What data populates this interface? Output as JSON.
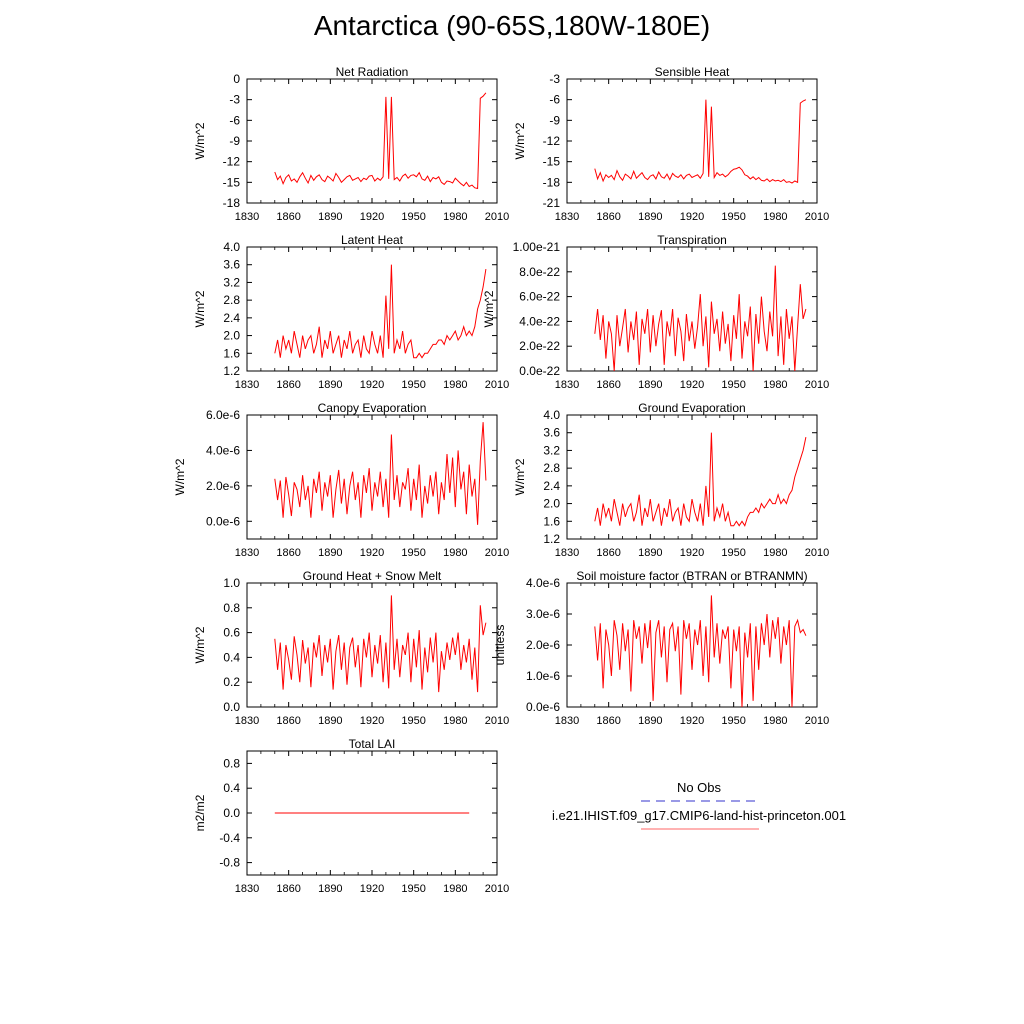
{
  "title": "Antarctica (90-65S,180W-180E)",
  "line_color": "#ff0000",
  "legend": {
    "obs_label": "No Obs",
    "obs_color": "#3333cc",
    "model_label": "i.e21.IHIST.f09_g17.CMIP6-land-hist-princeton.001",
    "model_color": "#ff6666"
  },
  "chart_data": [
    {
      "type": "line",
      "title": "Net Radiation",
      "ylabel": "W/m^2",
      "xlabel": "",
      "xlim": [
        1830,
        2010
      ],
      "ylim": [
        -18,
        0
      ],
      "x_ticks": [
        "1830",
        "1860",
        "1890",
        "1920",
        "1950",
        "1980",
        "2010"
      ],
      "y_ticks": [
        "0",
        "-3",
        "-6",
        "-9",
        "-12",
        "-15",
        "-18"
      ],
      "x_start": 1850,
      "x_step": 2,
      "series": [
        {
          "values": [
            -13.5,
            -14.6,
            -14.1,
            -15.2,
            -14.3,
            -13.9,
            -14.8,
            -14.5,
            -15.0,
            -14.2,
            -13.6,
            -14.4,
            -15.1,
            -14.0,
            -14.7,
            -14.2,
            -13.9,
            -14.6,
            -14.9,
            -14.1,
            -14.4,
            -14.8,
            -13.7,
            -14.3,
            -15.0,
            -14.6,
            -14.2,
            -14.0,
            -14.7,
            -14.5,
            -14.3,
            -14.9,
            -14.4,
            -14.6,
            -14.1,
            -14.0,
            -14.8,
            -14.4,
            -14.7,
            -14.2,
            -2.6,
            -14.5,
            -2.6,
            -14.6,
            -14.3,
            -14.8,
            -14.1,
            -13.8,
            -14.4,
            -14.0,
            -13.9,
            -14.2,
            -13.6,
            -14.5,
            -14.7,
            -14.1,
            -14.9,
            -14.3,
            -14.5,
            -14.2,
            -15.0,
            -15.3,
            -14.8,
            -14.9,
            -15.1,
            -14.4,
            -14.8,
            -15.2,
            -15.5,
            -15.0,
            -15.6,
            -15.4,
            -15.8,
            -15.9,
            -2.8,
            -2.5,
            -2.0
          ]
        }
      ]
    },
    {
      "type": "line",
      "title": "Sensible Heat",
      "ylabel": "W/m^2",
      "xlabel": "",
      "xlim": [
        1830,
        2010
      ],
      "ylim": [
        -21,
        -3
      ],
      "x_ticks": [
        "1830",
        "1860",
        "1890",
        "1920",
        "1950",
        "1980",
        "2010"
      ],
      "y_ticks": [
        "-3",
        "-6",
        "-9",
        "-12",
        "-15",
        "-18",
        "-21"
      ],
      "x_start": 1850,
      "x_step": 2,
      "series": [
        {
          "values": [
            -16.0,
            -17.5,
            -16.6,
            -17.8,
            -16.9,
            -17.3,
            -17.0,
            -17.6,
            -16.3,
            -17.2,
            -17.7,
            -16.8,
            -17.1,
            -17.5,
            -16.4,
            -17.4,
            -17.0,
            -16.6,
            -17.3,
            -17.6,
            -17.1,
            -16.9,
            -17.5,
            -16.5,
            -17.2,
            -17.4,
            -16.8,
            -17.6,
            -16.7,
            -17.1,
            -17.3,
            -16.9,
            -17.5,
            -17.0,
            -16.8,
            -17.3,
            -17.1,
            -16.9,
            -17.4,
            -16.7,
            -6.0,
            -17.2,
            -7.0,
            -17.3,
            -16.6,
            -17.0,
            -16.8,
            -17.2,
            -16.9,
            -16.4,
            -16.1,
            -16.0,
            -15.8,
            -16.2,
            -16.9,
            -17.1,
            -17.5,
            -17.2,
            -17.6,
            -17.3,
            -17.7,
            -17.8,
            -17.5,
            -17.9,
            -17.6,
            -17.8,
            -17.7,
            -17.9,
            -17.6,
            -18.0,
            -17.9,
            -18.1,
            -17.8,
            -18.0,
            -6.5,
            -6.2,
            -6.0
          ]
        }
      ]
    },
    {
      "type": "line",
      "title": "Latent Heat",
      "ylabel": "W/m^2",
      "xlabel": "",
      "xlim": [
        1830,
        2010
      ],
      "ylim": [
        1.2,
        4.0
      ],
      "x_ticks": [
        "1830",
        "1860",
        "1890",
        "1920",
        "1950",
        "1980",
        "2010"
      ],
      "y_ticks": [
        "4.0",
        "3.6",
        "3.2",
        "2.8",
        "2.4",
        "2.0",
        "1.6",
        "1.2"
      ],
      "x_start": 1850,
      "x_step": 2,
      "series": [
        {
          "values": [
            1.6,
            1.9,
            1.5,
            2.0,
            1.7,
            1.9,
            1.6,
            2.1,
            1.8,
            1.5,
            2.0,
            1.7,
            1.9,
            2.0,
            1.6,
            1.8,
            2.2,
            1.5,
            1.9,
            1.7,
            2.1,
            1.6,
            1.8,
            2.0,
            1.5,
            1.9,
            1.7,
            2.1,
            1.6,
            1.8,
            1.9,
            1.5,
            2.0,
            1.7,
            1.6,
            2.1,
            1.8,
            1.6,
            2.0,
            1.5,
            2.9,
            1.7,
            3.6,
            1.6,
            1.9,
            1.7,
            2.1,
            1.6,
            1.8,
            1.9,
            1.5,
            1.5,
            1.6,
            1.5,
            1.6,
            1.6,
            1.7,
            1.8,
            1.8,
            1.9,
            1.9,
            1.8,
            2.0,
            1.9,
            2.0,
            2.1,
            1.9,
            2.0,
            2.2,
            2.0,
            2.1,
            2.0,
            2.2,
            2.6,
            2.8,
            3.1,
            3.5
          ]
        }
      ]
    },
    {
      "type": "line",
      "title": "Transpiration",
      "ylabel": "W/m^2",
      "xlabel": "",
      "xlim": [
        1830,
        2010
      ],
      "ylim": [
        0,
        1e-21
      ],
      "x_ticks": [
        "1830",
        "1860",
        "1890",
        "1920",
        "1950",
        "1980",
        "2010"
      ],
      "y_ticks": [
        "1.00e-21",
        "8.0e-22",
        "6.0e-22",
        "4.0e-22",
        "2.0e-22",
        "0.0e-22"
      ],
      "x_start": 1850,
      "x_step": 2,
      "series": [
        {
          "values": [
            3e-22,
            5e-22,
            2.5e-22,
            4.5e-22,
            1e-22,
            4e-22,
            3e-22,
            0,
            4.5e-22,
            2e-22,
            3.5e-22,
            5e-22,
            1.5e-22,
            4e-22,
            2.5e-22,
            4.8e-22,
            5e-23,
            4.2e-22,
            3e-22,
            5e-22,
            1.5e-22,
            4.5e-22,
            2e-22,
            3.8e-22,
            4.9e-22,
            5e-23,
            4e-22,
            2.8e-22,
            5e-22,
            1.2e-22,
            4.3e-22,
            3.2e-22,
            8e-23,
            4.6e-22,
            2.4e-22,
            4e-22,
            1.8e-22,
            3.6e-22,
            6.2e-22,
            2e-22,
            4.4e-22,
            3e-23,
            5.6e-22,
            3e-22,
            4.2e-22,
            1.6e-22,
            4.8e-22,
            2.2e-22,
            3.8e-22,
            8e-23,
            4.5e-22,
            2.6e-22,
            6.2e-22,
            1e-22,
            4e-22,
            2.8e-22,
            5.2e-22,
            0,
            4.6e-22,
            2.2e-22,
            6e-22,
            3.2e-22,
            1.6e-22,
            4.8e-22,
            2.8e-22,
            8.5e-22,
            1.2e-22,
            4.4e-22,
            5e-23,
            5e-22,
            2.6e-22,
            4.4e-22,
            0,
            3.6e-22,
            7e-22,
            4.2e-22,
            5e-22
          ]
        }
      ]
    },
    {
      "type": "line",
      "title": "Canopy Evaporation",
      "ylabel": "W/m^2",
      "xlabel": "",
      "xlim": [
        1830,
        2010
      ],
      "ylim": [
        -1e-06,
        6e-06
      ],
      "x_ticks": [
        "1830",
        "1860",
        "1890",
        "1920",
        "1950",
        "1980",
        "2010"
      ],
      "y_ticks": [
        "6.0e-6",
        "4.0e-6",
        "2.0e-6",
        "0.0e-6"
      ],
      "x_start": 1850,
      "x_step": 2,
      "series": [
        {
          "values": [
            2.4e-06,
            1.2e-06,
            2.3e-06,
            2e-07,
            2.5e-06,
            1.5e-06,
            3e-07,
            2.2e-06,
            1.8e-06,
            8e-07,
            2.6e-06,
            1.2e-06,
            2e-06,
            2e-07,
            2.4e-06,
            1.6e-06,
            2.8e-06,
            6e-07,
            2.2e-06,
            1.4e-06,
            2.6e-06,
            2e-07,
            1.8e-06,
            2.9e-06,
            1e-06,
            2.4e-06,
            4e-07,
            2e-06,
            2.8e-06,
            1.2e-06,
            2.2e-06,
            2e-07,
            2.6e-06,
            1.6e-06,
            3e-06,
            6e-07,
            2.2e-06,
            1.4e-06,
            2.8e-06,
            8e-07,
            2.4e-06,
            2e-07,
            4.9e-06,
            1.2e-06,
            2.6e-06,
            8e-07,
            2.2e-06,
            1.8e-06,
            3e-06,
            6e-07,
            2.4e-06,
            1.2e-06,
            3.2e-06,
            2e-07,
            2e-06,
            1e-06,
            2.6e-06,
            1.4e-06,
            2.8e-06,
            4e-07,
            2.2e-06,
            1.2e-06,
            3.8e-06,
            1.6e-06,
            3.6e-06,
            8e-07,
            4e-06,
            1.8e-06,
            2.8e-06,
            4e-07,
            3.2e-06,
            1.4e-06,
            2.4e-06,
            -2e-07,
            3.4e-06,
            5.6e-06,
            2.3e-06
          ]
        }
      ]
    },
    {
      "type": "line",
      "title": "Ground Evaporation",
      "ylabel": "W/m^2",
      "xlabel": "",
      "xlim": [
        1830,
        2010
      ],
      "ylim": [
        1.2,
        4.0
      ],
      "x_ticks": [
        "1830",
        "1860",
        "1890",
        "1920",
        "1950",
        "1980",
        "2010"
      ],
      "y_ticks": [
        "4.0",
        "3.6",
        "3.2",
        "2.8",
        "2.4",
        "2.0",
        "1.6",
        "1.2"
      ],
      "x_start": 1850,
      "x_step": 2,
      "series": [
        {
          "values": [
            1.6,
            1.9,
            1.5,
            2.0,
            1.7,
            1.9,
            1.6,
            2.1,
            1.8,
            1.5,
            2.0,
            1.7,
            1.9,
            2.0,
            1.6,
            1.8,
            2.2,
            1.5,
            1.9,
            1.7,
            2.1,
            1.6,
            1.8,
            2.0,
            1.5,
            1.9,
            1.7,
            2.1,
            1.6,
            1.8,
            1.9,
            1.5,
            2.0,
            1.7,
            1.6,
            2.1,
            1.8,
            1.6,
            2.0,
            1.5,
            2.4,
            1.7,
            3.6,
            1.6,
            1.9,
            1.7,
            2.0,
            1.6,
            1.8,
            1.5,
            1.5,
            1.6,
            1.5,
            1.6,
            1.5,
            1.7,
            1.8,
            1.8,
            1.9,
            1.8,
            2.0,
            1.9,
            2.0,
            2.1,
            2.0,
            2.0,
            2.2,
            2.0,
            2.1,
            2.0,
            2.2,
            2.3,
            2.6,
            2.8,
            3.0,
            3.2,
            3.5
          ]
        }
      ]
    },
    {
      "type": "line",
      "title": "Ground Heat + Snow Melt",
      "ylabel": "W/m^2",
      "xlabel": "",
      "xlim": [
        1830,
        2010
      ],
      "ylim": [
        0.0,
        1.0
      ],
      "x_ticks": [
        "1830",
        "1860",
        "1890",
        "1920",
        "1950",
        "1980",
        "2010"
      ],
      "y_ticks": [
        "1.0",
        "0.8",
        "0.6",
        "0.4",
        "0.2",
        "0.0"
      ],
      "x_start": 1850,
      "x_step": 2,
      "series": [
        {
          "values": [
            0.55,
            0.3,
            0.52,
            0.14,
            0.5,
            0.38,
            0.22,
            0.57,
            0.42,
            0.2,
            0.54,
            0.35,
            0.48,
            0.16,
            0.52,
            0.4,
            0.58,
            0.25,
            0.5,
            0.36,
            0.55,
            0.14,
            0.45,
            0.58,
            0.3,
            0.52,
            0.18,
            0.48,
            0.56,
            0.32,
            0.5,
            0.16,
            0.55,
            0.4,
            0.6,
            0.24,
            0.5,
            0.35,
            0.58,
            0.2,
            0.52,
            0.15,
            0.9,
            0.3,
            0.55,
            0.24,
            0.5,
            0.42,
            0.6,
            0.2,
            0.55,
            0.32,
            0.62,
            0.14,
            0.48,
            0.28,
            0.56,
            0.36,
            0.6,
            0.12,
            0.45,
            0.3,
            0.52,
            0.38,
            0.56,
            0.42,
            0.6,
            0.3,
            0.5,
            0.36,
            0.55,
            0.22,
            0.48,
            0.12,
            0.82,
            0.58,
            0.68
          ]
        }
      ]
    },
    {
      "type": "line",
      "title": "Soil moisture factor (BTRAN or BTRANMN)",
      "ylabel": "unitless",
      "xlabel": "",
      "xlim": [
        1830,
        2010
      ],
      "ylim": [
        0,
        4e-06
      ],
      "x_ticks": [
        "1830",
        "1860",
        "1890",
        "1920",
        "1950",
        "1980",
        "2010"
      ],
      "y_ticks": [
        "4.0e-6",
        "3.0e-6",
        "2.0e-6",
        "1.0e-6",
        "0.0e-6"
      ],
      "x_start": 1850,
      "x_step": 2,
      "series": [
        {
          "values": [
            2.6e-06,
            1.5e-06,
            2.7e-06,
            6e-07,
            2.5e-06,
            2e-06,
            1e-06,
            2.8e-06,
            2.3e-06,
            1.2e-06,
            2.7e-06,
            1.8e-06,
            2.5e-06,
            5e-07,
            2.8e-06,
            2.2e-06,
            2.6e-06,
            1.4e-06,
            2.7e-06,
            1.9e-06,
            2.8e-06,
            2e-07,
            2.4e-06,
            2.8e-06,
            1.6e-06,
            2.6e-06,
            8e-07,
            2.5e-06,
            2.7e-06,
            1.8e-06,
            2.6e-06,
            4e-07,
            2.8e-06,
            2.2e-06,
            2.7e-06,
            1.2e-06,
            2.5e-06,
            2e-06,
            2.8e-06,
            1e-06,
            2.6e-06,
            8e-07,
            3.6e-06,
            1.6e-06,
            2.7e-06,
            1.4e-06,
            2.5e-06,
            2.2e-06,
            2.6e-06,
            6e-07,
            2.5e-06,
            1.8e-06,
            2.6e-06,
            0.0,
            2.4e-06,
            1.6e-06,
            2.7e-06,
            2e-07,
            2.6e-06,
            1.2e-06,
            2.7e-06,
            2e-06,
            3e-06,
            1.6e-06,
            2.8e-06,
            2.2e-06,
            2.9e-06,
            1.4e-06,
            2.6e-06,
            2e-06,
            2.8e-06,
            0.0,
            2.6e-06,
            2.8e-06,
            2.4e-06,
            2.5e-06,
            2.3e-06
          ]
        }
      ]
    },
    {
      "type": "line",
      "title": "Total LAI",
      "ylabel": "m2/m2",
      "xlabel": "",
      "xlim": [
        1830,
        2010
      ],
      "ylim": [
        -1.0,
        1.0
      ],
      "x_ticks": [
        "1830",
        "1860",
        "1890",
        "1920",
        "1950",
        "1980",
        "2010"
      ],
      "y_ticks": [
        "0.8",
        "0.4",
        "0.0",
        "-0.4",
        "-0.8"
      ],
      "x_start": 1850,
      "x_step": 140,
      "series": [
        {
          "values": [
            0.0,
            0.0
          ]
        }
      ]
    }
  ]
}
